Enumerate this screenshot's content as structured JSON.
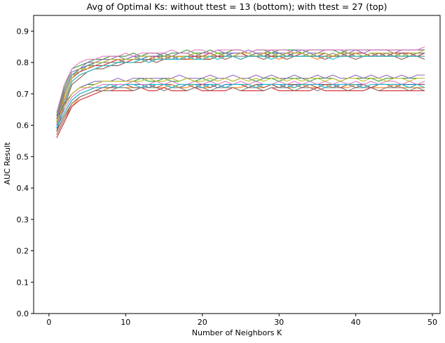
{
  "chart_data": {
    "type": "line",
    "title": "Avg of Optimal Ks: without ttest = 13 (bottom); with ttest = 27 (top)",
    "xlabel": "Number of Neighbors K",
    "ylabel": "AUC Result",
    "xlim": [
      -2,
      51
    ],
    "ylim": [
      0.0,
      0.95
    ],
    "xticks": [
      0,
      10,
      20,
      30,
      40,
      50
    ],
    "xtick_labels": [
      "0",
      "10",
      "20",
      "30",
      "40",
      "50"
    ],
    "yticks": [
      0.0,
      0.1,
      0.2,
      0.3,
      0.4,
      0.5,
      0.6,
      0.7,
      0.8,
      0.9
    ],
    "ytick_labels": [
      "0.0",
      "0.1",
      "0.2",
      "0.3",
      "0.4",
      "0.5",
      "0.6",
      "0.7",
      "0.8",
      "0.9"
    ],
    "grid": false,
    "legend": "none",
    "x": [
      1,
      2,
      3,
      4,
      5,
      6,
      7,
      8,
      9,
      10,
      11,
      12,
      13,
      14,
      15,
      16,
      17,
      18,
      19,
      20,
      21,
      22,
      23,
      24,
      25,
      26,
      27,
      28,
      29,
      30,
      31,
      32,
      33,
      34,
      35,
      36,
      37,
      38,
      39,
      40,
      41,
      42,
      43,
      44,
      45,
      46,
      47,
      48,
      49
    ],
    "series": [
      {
        "values": [
          0.61,
          0.7,
          0.76,
          0.78,
          0.79,
          0.8,
          0.8,
          0.81,
          0.81,
          0.81,
          0.82,
          0.81,
          0.82,
          0.82,
          0.82,
          0.82,
          0.81,
          0.82,
          0.83,
          0.82,
          0.82,
          0.83,
          0.82,
          0.83,
          0.83,
          0.82,
          0.83,
          0.82,
          0.83,
          0.83,
          0.82,
          0.83,
          0.83,
          0.82,
          0.83,
          0.83,
          0.82,
          0.83,
          0.83,
          0.83,
          0.82,
          0.83,
          0.83,
          0.83,
          0.82,
          0.83,
          0.83,
          0.83,
          0.83
        ]
      },
      {
        "values": [
          0.59,
          0.68,
          0.74,
          0.76,
          0.77,
          0.78,
          0.79,
          0.79,
          0.8,
          0.8,
          0.8,
          0.81,
          0.8,
          0.81,
          0.81,
          0.81,
          0.82,
          0.81,
          0.81,
          0.82,
          0.81,
          0.82,
          0.82,
          0.82,
          0.81,
          0.82,
          0.82,
          0.82,
          0.82,
          0.81,
          0.82,
          0.82,
          0.82,
          0.82,
          0.81,
          0.82,
          0.82,
          0.82,
          0.82,
          0.82,
          0.82,
          0.82,
          0.82,
          0.82,
          0.82,
          0.82,
          0.82,
          0.82,
          0.82
        ]
      },
      {
        "values": [
          0.63,
          0.72,
          0.78,
          0.79,
          0.8,
          0.81,
          0.81,
          0.82,
          0.82,
          0.82,
          0.83,
          0.82,
          0.83,
          0.83,
          0.82,
          0.83,
          0.83,
          0.84,
          0.83,
          0.83,
          0.84,
          0.83,
          0.83,
          0.84,
          0.84,
          0.83,
          0.84,
          0.84,
          0.83,
          0.84,
          0.84,
          0.84,
          0.83,
          0.84,
          0.84,
          0.84,
          0.84,
          0.83,
          0.84,
          0.84,
          0.84,
          0.84,
          0.84,
          0.84,
          0.84,
          0.84,
          0.84,
          0.84,
          0.84
        ]
      },
      {
        "values": [
          0.6,
          0.69,
          0.75,
          0.77,
          0.78,
          0.79,
          0.79,
          0.8,
          0.81,
          0.8,
          0.81,
          0.81,
          0.81,
          0.82,
          0.81,
          0.82,
          0.82,
          0.82,
          0.82,
          0.82,
          0.83,
          0.82,
          0.82,
          0.82,
          0.83,
          0.82,
          0.82,
          0.83,
          0.82,
          0.82,
          0.83,
          0.82,
          0.83,
          0.82,
          0.82,
          0.83,
          0.82,
          0.83,
          0.82,
          0.83,
          0.83,
          0.82,
          0.83,
          0.82,
          0.83,
          0.83,
          0.83,
          0.82,
          0.83
        ]
      },
      {
        "values": [
          0.62,
          0.71,
          0.77,
          0.78,
          0.8,
          0.8,
          0.81,
          0.81,
          0.82,
          0.81,
          0.82,
          0.82,
          0.82,
          0.82,
          0.83,
          0.82,
          0.83,
          0.83,
          0.82,
          0.83,
          0.83,
          0.84,
          0.83,
          0.83,
          0.83,
          0.84,
          0.83,
          0.83,
          0.84,
          0.83,
          0.83,
          0.84,
          0.84,
          0.83,
          0.83,
          0.84,
          0.84,
          0.84,
          0.83,
          0.84,
          0.83,
          0.84,
          0.84,
          0.84,
          0.83,
          0.84,
          0.84,
          0.84,
          0.84
        ]
      },
      {
        "values": [
          0.58,
          0.66,
          0.73,
          0.75,
          0.77,
          0.78,
          0.78,
          0.79,
          0.79,
          0.8,
          0.8,
          0.8,
          0.81,
          0.8,
          0.81,
          0.81,
          0.81,
          0.81,
          0.82,
          0.81,
          0.81,
          0.82,
          0.81,
          0.82,
          0.81,
          0.82,
          0.82,
          0.81,
          0.82,
          0.82,
          0.81,
          0.82,
          0.82,
          0.82,
          0.82,
          0.81,
          0.82,
          0.82,
          0.82,
          0.81,
          0.82,
          0.82,
          0.82,
          0.82,
          0.82,
          0.81,
          0.82,
          0.82,
          0.81
        ]
      },
      {
        "values": [
          0.64,
          0.73,
          0.78,
          0.8,
          0.81,
          0.81,
          0.82,
          0.82,
          0.82,
          0.83,
          0.82,
          0.83,
          0.83,
          0.83,
          0.83,
          0.84,
          0.83,
          0.83,
          0.84,
          0.84,
          0.83,
          0.84,
          0.84,
          0.84,
          0.84,
          0.83,
          0.84,
          0.84,
          0.84,
          0.84,
          0.84,
          0.83,
          0.84,
          0.84,
          0.84,
          0.84,
          0.84,
          0.84,
          0.84,
          0.84,
          0.84,
          0.84,
          0.84,
          0.84,
          0.84,
          0.84,
          0.84,
          0.84,
          0.85
        ]
      },
      {
        "values": [
          0.6,
          0.7,
          0.76,
          0.77,
          0.79,
          0.79,
          0.8,
          0.8,
          0.8,
          0.81,
          0.81,
          0.81,
          0.81,
          0.81,
          0.82,
          0.81,
          0.82,
          0.82,
          0.81,
          0.82,
          0.82,
          0.82,
          0.83,
          0.82,
          0.82,
          0.82,
          0.83,
          0.82,
          0.82,
          0.83,
          0.82,
          0.82,
          0.82,
          0.83,
          0.82,
          0.82,
          0.83,
          0.82,
          0.83,
          0.82,
          0.82,
          0.83,
          0.82,
          0.83,
          0.82,
          0.83,
          0.82,
          0.83,
          0.83
        ]
      },
      {
        "values": [
          0.61,
          0.69,
          0.75,
          0.78,
          0.78,
          0.8,
          0.8,
          0.81,
          0.81,
          0.81,
          0.81,
          0.82,
          0.82,
          0.81,
          0.82,
          0.82,
          0.82,
          0.82,
          0.83,
          0.82,
          0.82,
          0.83,
          0.82,
          0.82,
          0.83,
          0.83,
          0.82,
          0.83,
          0.83,
          0.82,
          0.83,
          0.83,
          0.83,
          0.82,
          0.83,
          0.83,
          0.82,
          0.83,
          0.83,
          0.83,
          0.82,
          0.83,
          0.83,
          0.83,
          0.83,
          0.82,
          0.83,
          0.83,
          0.84
        ]
      },
      {
        "values": [
          0.59,
          0.67,
          0.74,
          0.76,
          0.77,
          0.78,
          0.79,
          0.79,
          0.8,
          0.8,
          0.8,
          0.81,
          0.8,
          0.81,
          0.81,
          0.81,
          0.81,
          0.82,
          0.81,
          0.81,
          0.82,
          0.81,
          0.82,
          0.82,
          0.81,
          0.82,
          0.82,
          0.82,
          0.81,
          0.82,
          0.82,
          0.82,
          0.82,
          0.82,
          0.82,
          0.82,
          0.81,
          0.82,
          0.82,
          0.82,
          0.82,
          0.82,
          0.82,
          0.82,
          0.82,
          0.82,
          0.82,
          0.82,
          0.82
        ]
      },
      {
        "values": [
          0.59,
          0.64,
          0.68,
          0.7,
          0.71,
          0.72,
          0.72,
          0.72,
          0.73,
          0.73,
          0.73,
          0.73,
          0.72,
          0.73,
          0.73,
          0.73,
          0.72,
          0.73,
          0.73,
          0.73,
          0.73,
          0.72,
          0.73,
          0.73,
          0.73,
          0.72,
          0.73,
          0.73,
          0.73,
          0.73,
          0.72,
          0.73,
          0.73,
          0.73,
          0.73,
          0.73,
          0.72,
          0.73,
          0.73,
          0.73,
          0.73,
          0.72,
          0.73,
          0.73,
          0.73,
          0.73,
          0.73,
          0.73,
          0.73
        ]
      },
      {
        "values": [
          0.57,
          0.62,
          0.66,
          0.69,
          0.7,
          0.71,
          0.71,
          0.72,
          0.72,
          0.72,
          0.72,
          0.72,
          0.73,
          0.72,
          0.72,
          0.73,
          0.72,
          0.72,
          0.73,
          0.72,
          0.72,
          0.73,
          0.72,
          0.72,
          0.72,
          0.73,
          0.72,
          0.72,
          0.73,
          0.72,
          0.72,
          0.72,
          0.73,
          0.72,
          0.72,
          0.73,
          0.72,
          0.72,
          0.72,
          0.73,
          0.72,
          0.72,
          0.72,
          0.72,
          0.73,
          0.72,
          0.72,
          0.72,
          0.72
        ]
      },
      {
        "values": [
          0.61,
          0.66,
          0.7,
          0.72,
          0.73,
          0.73,
          0.74,
          0.74,
          0.74,
          0.74,
          0.74,
          0.75,
          0.74,
          0.74,
          0.75,
          0.74,
          0.74,
          0.75,
          0.74,
          0.75,
          0.74,
          0.75,
          0.75,
          0.74,
          0.75,
          0.75,
          0.74,
          0.75,
          0.75,
          0.74,
          0.75,
          0.75,
          0.75,
          0.74,
          0.75,
          0.75,
          0.75,
          0.74,
          0.75,
          0.75,
          0.75,
          0.75,
          0.74,
          0.75,
          0.75,
          0.75,
          0.75,
          0.75,
          0.75
        ]
      },
      {
        "values": [
          0.56,
          0.61,
          0.66,
          0.68,
          0.69,
          0.7,
          0.71,
          0.71,
          0.71,
          0.71,
          0.71,
          0.72,
          0.71,
          0.71,
          0.72,
          0.71,
          0.71,
          0.71,
          0.72,
          0.71,
          0.71,
          0.71,
          0.71,
          0.72,
          0.71,
          0.71,
          0.71,
          0.71,
          0.72,
          0.71,
          0.71,
          0.71,
          0.71,
          0.71,
          0.72,
          0.71,
          0.71,
          0.71,
          0.71,
          0.71,
          0.71,
          0.72,
          0.71,
          0.71,
          0.71,
          0.71,
          0.71,
          0.71,
          0.71
        ]
      },
      {
        "values": [
          0.62,
          0.67,
          0.7,
          0.72,
          0.73,
          0.74,
          0.74,
          0.74,
          0.75,
          0.74,
          0.75,
          0.75,
          0.75,
          0.75,
          0.75,
          0.75,
          0.76,
          0.75,
          0.75,
          0.75,
          0.76,
          0.75,
          0.75,
          0.76,
          0.75,
          0.75,
          0.76,
          0.75,
          0.76,
          0.75,
          0.75,
          0.76,
          0.75,
          0.75,
          0.76,
          0.75,
          0.76,
          0.75,
          0.75,
          0.76,
          0.75,
          0.76,
          0.75,
          0.76,
          0.75,
          0.76,
          0.75,
          0.76,
          0.76
        ]
      },
      {
        "values": [
          0.58,
          0.63,
          0.67,
          0.69,
          0.7,
          0.71,
          0.72,
          0.72,
          0.72,
          0.73,
          0.72,
          0.72,
          0.73,
          0.72,
          0.73,
          0.72,
          0.73,
          0.73,
          0.72,
          0.73,
          0.72,
          0.73,
          0.72,
          0.73,
          0.73,
          0.72,
          0.73,
          0.72,
          0.73,
          0.72,
          0.73,
          0.73,
          0.72,
          0.73,
          0.72,
          0.73,
          0.73,
          0.72,
          0.73,
          0.72,
          0.73,
          0.72,
          0.73,
          0.73,
          0.72,
          0.73,
          0.72,
          0.73,
          0.73
        ]
      },
      {
        "values": [
          0.6,
          0.65,
          0.69,
          0.71,
          0.72,
          0.72,
          0.73,
          0.73,
          0.73,
          0.73,
          0.74,
          0.73,
          0.73,
          0.74,
          0.73,
          0.74,
          0.73,
          0.73,
          0.74,
          0.73,
          0.74,
          0.73,
          0.74,
          0.73,
          0.74,
          0.73,
          0.74,
          0.73,
          0.73,
          0.74,
          0.73,
          0.74,
          0.73,
          0.74,
          0.73,
          0.74,
          0.73,
          0.74,
          0.73,
          0.74,
          0.73,
          0.74,
          0.73,
          0.74,
          0.74,
          0.73,
          0.74,
          0.73,
          0.74
        ]
      },
      {
        "values": [
          0.57,
          0.62,
          0.67,
          0.69,
          0.7,
          0.71,
          0.71,
          0.71,
          0.72,
          0.72,
          0.71,
          0.72,
          0.72,
          0.72,
          0.71,
          0.72,
          0.72,
          0.71,
          0.72,
          0.72,
          0.71,
          0.72,
          0.72,
          0.72,
          0.71,
          0.72,
          0.72,
          0.71,
          0.72,
          0.72,
          0.72,
          0.71,
          0.72,
          0.72,
          0.71,
          0.72,
          0.72,
          0.72,
          0.71,
          0.72,
          0.72,
          0.72,
          0.71,
          0.72,
          0.72,
          0.72,
          0.71,
          0.72,
          0.71
        ]
      },
      {
        "values": [
          0.61,
          0.66,
          0.7,
          0.72,
          0.72,
          0.73,
          0.74,
          0.74,
          0.74,
          0.74,
          0.74,
          0.74,
          0.75,
          0.74,
          0.74,
          0.75,
          0.74,
          0.75,
          0.74,
          0.74,
          0.75,
          0.74,
          0.75,
          0.74,
          0.75,
          0.74,
          0.75,
          0.74,
          0.75,
          0.75,
          0.74,
          0.75,
          0.74,
          0.75,
          0.75,
          0.74,
          0.75,
          0.74,
          0.75,
          0.75,
          0.74,
          0.75,
          0.75,
          0.74,
          0.75,
          0.75,
          0.74,
          0.75,
          0.75
        ]
      },
      {
        "values": [
          0.59,
          0.64,
          0.68,
          0.7,
          0.71,
          0.72,
          0.72,
          0.73,
          0.72,
          0.73,
          0.73,
          0.72,
          0.73,
          0.73,
          0.73,
          0.72,
          0.73,
          0.73,
          0.73,
          0.72,
          0.73,
          0.73,
          0.72,
          0.73,
          0.73,
          0.73,
          0.72,
          0.73,
          0.73,
          0.73,
          0.73,
          0.72,
          0.73,
          0.73,
          0.73,
          0.72,
          0.73,
          0.73,
          0.73,
          0.73,
          0.72,
          0.73,
          0.73,
          0.73,
          0.73,
          0.73,
          0.72,
          0.73,
          0.72
        ]
      }
    ]
  },
  "colors": [
    "#1f77b4",
    "#ff7f0e",
    "#2ca02c",
    "#d62728",
    "#9467bd",
    "#8c564b",
    "#e377c2",
    "#7f7f7f",
    "#bcbd22",
    "#17becf"
  ]
}
